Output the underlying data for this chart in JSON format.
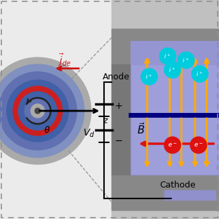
{
  "bg_left": "#ebebeb",
  "bg_right": "#c0c0c0",
  "dashed_color": "#909090",
  "ring_radii": [
    78,
    68,
    57,
    45,
    36,
    28,
    19,
    10
  ],
  "ring_colors": [
    "#aaaaaa",
    "#8090c0",
    "#6070b0",
    "#4060a8",
    "#cc2020",
    "#4060a8",
    "#6070b0",
    "#aaaaaa"
  ],
  "center_color": "#444444",
  "jde_color": "#cc1111",
  "axis_color": "#222222",
  "plasma_color": "#9898e0",
  "plasma_alpha": 0.85,
  "B_line_color": "#000080",
  "ion_color": "#00ccdd",
  "ion_text": "white",
  "electron_color": "#dd1111",
  "electron_text": "white",
  "ion_arrow_color": "#ffaa00",
  "elec_arrow_color": "#dd1111",
  "battery_color": "#111111",
  "cathode_bar_color": "#9090cc",
  "wall_color": "#888888",
  "anode_block_color": "#777777"
}
